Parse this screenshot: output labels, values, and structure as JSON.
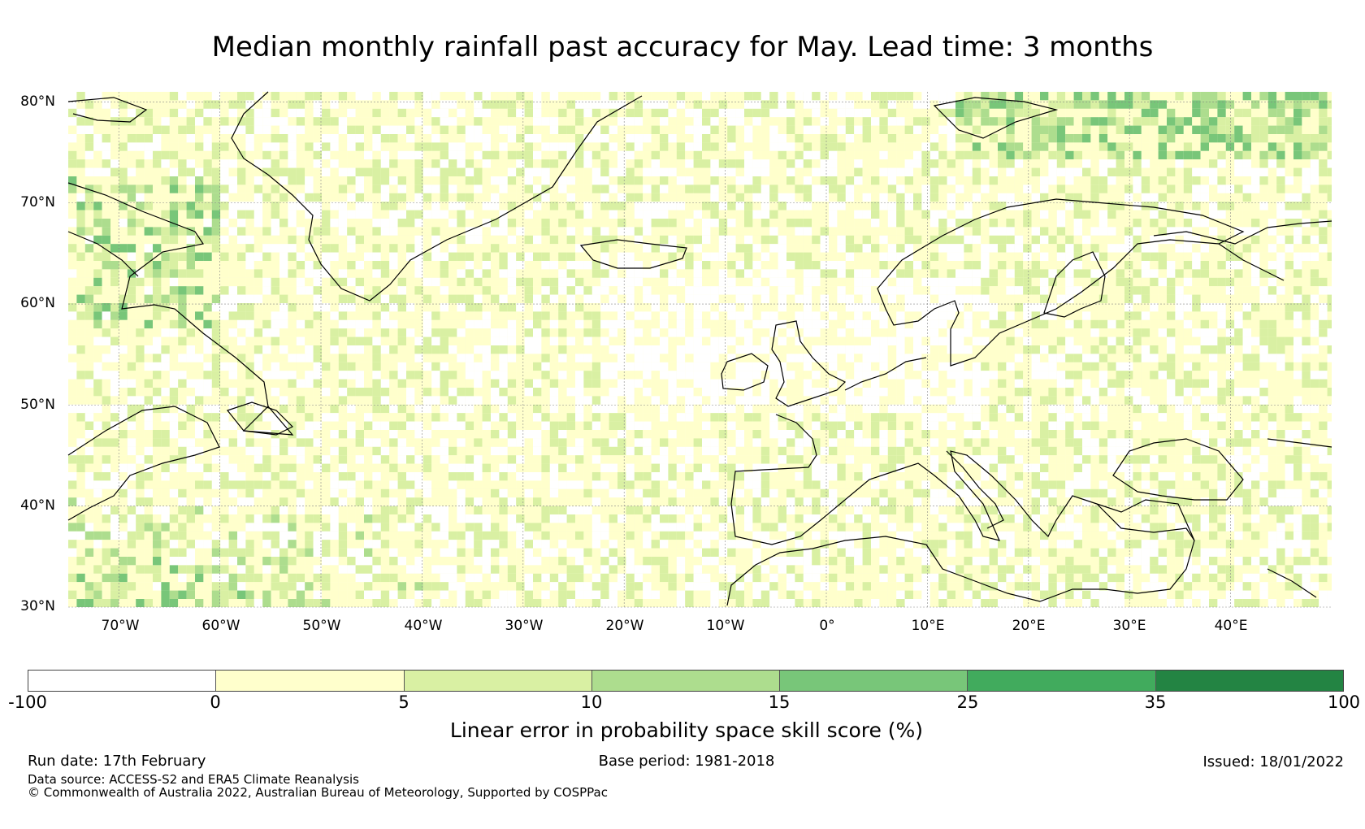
{
  "title": "Median monthly rainfall past accuracy for May. Lead time: 3 months",
  "map": {
    "lon_range": [
      -75,
      50
    ],
    "lat_range": [
      30,
      81
    ],
    "lat_labels": [
      "80°N",
      "70°N",
      "60°N",
      "50°N",
      "40°N",
      "30°N"
    ],
    "lon_labels": [
      "70°W",
      "60°W",
      "50°W",
      "40°W",
      "30°W",
      "20°W",
      "10°W",
      "0°",
      "10°E",
      "20°E",
      "30°E",
      "40°E"
    ],
    "coastline_color": "#000000",
    "gridline_color": "#888888"
  },
  "colorbar": {
    "colors": [
      "#ffffff",
      "#ffffcc",
      "#d9f0a3",
      "#addd8e",
      "#78c679",
      "#41ab5d",
      "#238443"
    ],
    "ticks": [
      "-100",
      "0",
      "5",
      "10",
      "15",
      "25",
      "35",
      "100"
    ],
    "label": "Linear error in probability space skill score (%)"
  },
  "footer": {
    "run_date": "Run date: 17th February",
    "base_period": "Base period: 1981-2018",
    "issued": "Issued: 18/01/2022",
    "data_source": "Data source: ACCESS-S2 and ERA5 Climate Reanalysis",
    "copyright": "© Commonwealth of Australia 2022, Australian Bureau of Meteorology, Supported by COSPPac"
  }
}
